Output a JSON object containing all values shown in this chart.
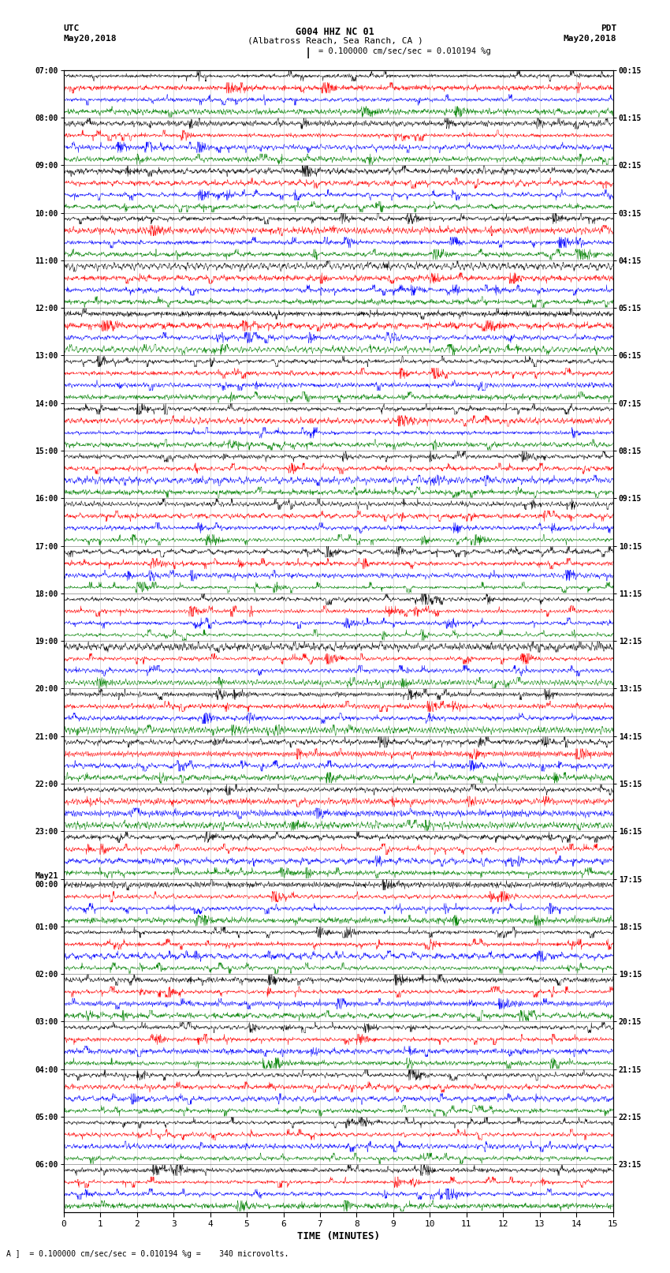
{
  "title_line1": "G004 HHZ NC 01",
  "title_line2": "(Albatross Reach, Sea Ranch, CA )",
  "scale_bar_text": "= 0.100000 cm/sec/sec = 0.010194 %g",
  "left_label_top": "UTC",
  "left_label_date": "May20,2018",
  "right_label_top": "PDT",
  "right_label_date": "May20,2018",
  "xlabel": "TIME (MINUTES)",
  "footer_text": "= 0.100000 cm/sec/sec = 0.010194 %g =    340 microvolts.",
  "xmin": 0,
  "xmax": 15,
  "colors": [
    "black",
    "red",
    "blue",
    "green"
  ],
  "utc_hours": [
    "07:00",
    "08:00",
    "09:00",
    "10:00",
    "11:00",
    "12:00",
    "13:00",
    "14:00",
    "15:00",
    "16:00",
    "17:00",
    "18:00",
    "19:00",
    "20:00",
    "21:00",
    "22:00",
    "23:00",
    "May21\n00:00",
    "01:00",
    "02:00",
    "03:00",
    "04:00",
    "05:00",
    "06:00"
  ],
  "pdt_hours": [
    "00:15",
    "01:15",
    "02:15",
    "03:15",
    "04:15",
    "05:15",
    "06:15",
    "07:15",
    "08:15",
    "09:15",
    "10:15",
    "11:15",
    "12:15",
    "13:15",
    "14:15",
    "15:15",
    "16:15",
    "17:15",
    "18:15",
    "19:15",
    "20:15",
    "21:15",
    "22:15",
    "23:15"
  ],
  "n_hour_blocks": 24,
  "traces_per_block": 4,
  "bg_color": "white",
  "seed": 42
}
